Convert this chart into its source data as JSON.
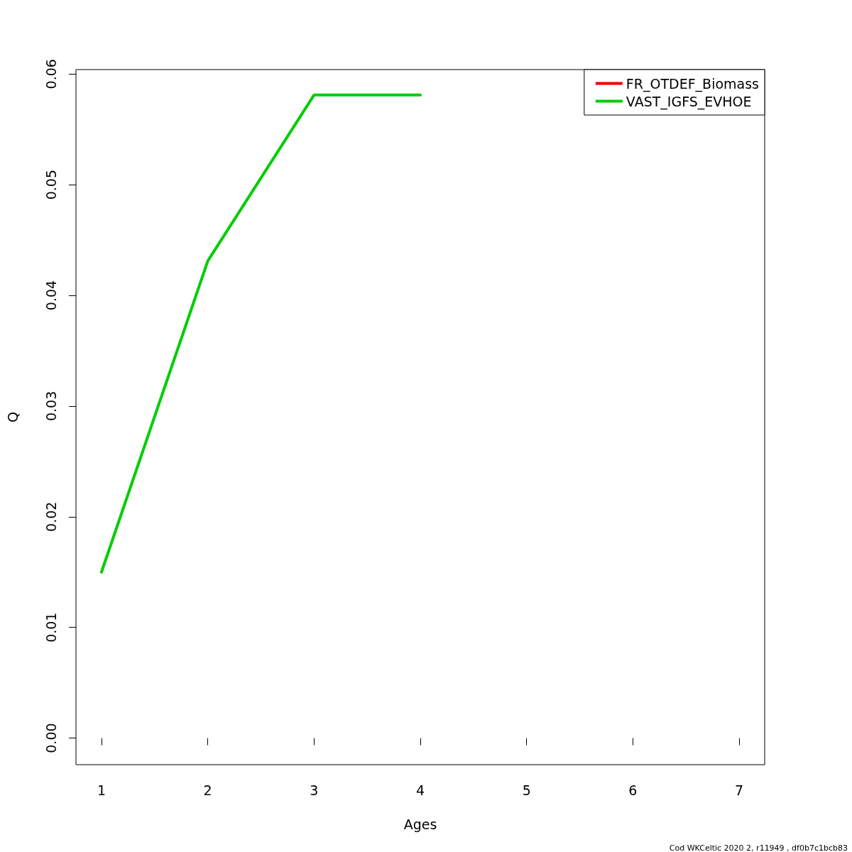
{
  "chart_data": {
    "type": "line",
    "xlabel": "Ages",
    "ylabel": "Q",
    "x": [
      1,
      2,
      3,
      4
    ],
    "series": [
      {
        "name": "FR_OTDEF_Biomass",
        "color": "#ee0000",
        "values": [
          null,
          null,
          null,
          null
        ]
      },
      {
        "name": "VAST_IGFS_EVHOE",
        "color": "#00cd00",
        "values": [
          0.015,
          0.0431,
          0.0581,
          0.0581
        ]
      }
    ],
    "xlim": [
      0.76,
      7.24
    ],
    "xticks": [
      1,
      2,
      3,
      4,
      5,
      6,
      7
    ],
    "ylim": [
      -0.0024,
      0.0604
    ],
    "yticks": [
      {
        "value": 0,
        "label": "0.00"
      },
      {
        "value": 0.01,
        "label": "0.01"
      },
      {
        "value": 0.02,
        "label": "0.02"
      },
      {
        "value": 0.03,
        "label": "0.03"
      },
      {
        "value": 0.04,
        "label": "0.04"
      },
      {
        "value": 0.05,
        "label": "0.05"
      },
      {
        "value": 0.06,
        "label": "0.06"
      }
    ],
    "grid": false,
    "legend": "top right",
    "annotations": [
      "Cod WKCeltic 2020 2, r11949 , df0b7c1bcb83"
    ]
  }
}
